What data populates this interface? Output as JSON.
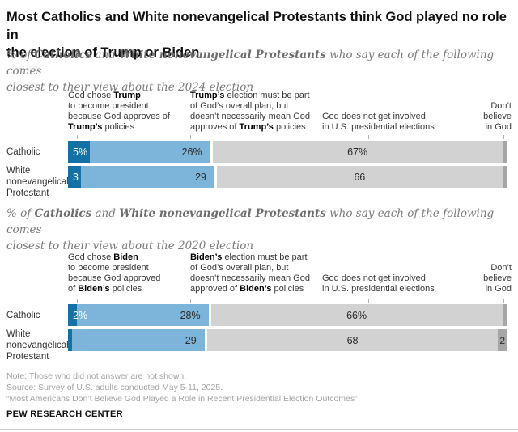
{
  "title": "Most Catholics and White nonevangelical Protestants think God played no role in\nthe election of Trump or Biden",
  "colors": {
    "dark_blue": "#1371a5",
    "light_blue": "#7cb5d9",
    "gray": "#d2d2d2",
    "dark_gray": "#a6a6a6"
  },
  "chart_data": [
    {
      "type": "bar",
      "stacked": true,
      "orientation": "horizontal",
      "xlim": [
        0,
        100
      ],
      "title_plain": "% of Catholics and White nonevangelical Protestants who say each of the following comes closest to their view about the 2024 election",
      "subtitle_lines": [
        [
          {
            "t": "% of ",
            "b": false
          },
          {
            "t": "Catholics",
            "b": true
          },
          {
            "t": " and ",
            "b": false
          },
          {
            "t": "White nonevangelical Protestants",
            "b": true
          },
          {
            "t": " who say each of the following comes",
            "b": false
          }
        ],
        [
          {
            "t": "closest to their view about the 2024 election",
            "b": false
          }
        ]
      ],
      "columns": [
        {
          "plain": "God chose Trump to become president because God approves of Trump’s policies",
          "lines": [
            [
              {
                "t": "God chose ",
                "b": false
              },
              {
                "t": "Trump",
                "b": true
              }
            ],
            [
              {
                "t": "to become president",
                "b": false
              }
            ],
            [
              {
                "t": "because God approves of",
                "b": false
              }
            ],
            [
              {
                "t": "Trump’s",
                "b": true
              },
              {
                "t": " policies",
                "b": false
              }
            ]
          ]
        },
        {
          "plain": "Trump’s election must be part of God’s overall plan, but doesn’t necessarily mean God approves of Trump’s policies",
          "lines": [
            [
              {
                "t": "Trump’s",
                "b": true
              },
              {
                "t": " election must be part",
                "b": false
              }
            ],
            [
              {
                "t": "of God’s overall plan, but",
                "b": false
              }
            ],
            [
              {
                "t": "doesn’t necessarily mean God",
                "b": false
              }
            ],
            [
              {
                "t": "approves of ",
                "b": false
              },
              {
                "t": "Trump’s",
                "b": true
              },
              {
                "t": " policies",
                "b": false
              }
            ]
          ]
        },
        {
          "plain": "God does not get involved in U.S. presidential elections",
          "lines": [
            [
              {
                "t": "God does not get involved",
                "b": false
              }
            ],
            [
              {
                "t": "in U.S. presidential elections",
                "b": false
              }
            ]
          ]
        },
        {
          "plain": "Don’t believe in God",
          "lines": [
            [
              {
                "t": "Don’t",
                "b": false
              }
            ],
            [
              {
                "t": "believe",
                "b": false
              }
            ],
            [
              {
                "t": "in God",
                "b": false
              }
            ]
          ]
        }
      ],
      "categories": [
        "Catholic",
        "White nonevangelical Protestant"
      ],
      "rows": [
        {
          "label": "Catholic",
          "segments": [
            {
              "value": 5,
              "label": "5%"
            },
            {
              "value": 26,
              "label": "26%"
            },
            {
              "value": 67,
              "label": "67%"
            },
            {
              "value": 1,
              "label": ""
            }
          ]
        },
        {
          "label": "White\nnonevangelical\nProtestant",
          "segments": [
            {
              "value": 3,
              "label": "3"
            },
            {
              "value": 29,
              "label": "29"
            },
            {
              "value": 66,
              "label": "66"
            },
            {
              "value": 1,
              "label": ""
            }
          ]
        }
      ]
    },
    {
      "type": "bar",
      "stacked": true,
      "orientation": "horizontal",
      "xlim": [
        0,
        100
      ],
      "title_plain": "% of Catholics and White nonevangelical Protestants who say each of the following comes closest to their view about the 2020 election",
      "subtitle_lines": [
        [
          {
            "t": "% of ",
            "b": false
          },
          {
            "t": "Catholics",
            "b": true
          },
          {
            "t": " and ",
            "b": false
          },
          {
            "t": "White nonevangelical Protestants",
            "b": true
          },
          {
            "t": " who say each of the following comes",
            "b": false
          }
        ],
        [
          {
            "t": "closest to their view about the 2020 election",
            "b": false
          }
        ]
      ],
      "columns": [
        {
          "plain": "God chose Biden to become president because God approved of Biden’s policies",
          "lines": [
            [
              {
                "t": "God chose ",
                "b": false
              },
              {
                "t": "Biden",
                "b": true
              }
            ],
            [
              {
                "t": "to become president",
                "b": false
              }
            ],
            [
              {
                "t": "because God approved",
                "b": false
              }
            ],
            [
              {
                "t": "of ",
                "b": false
              },
              {
                "t": "Biden’s",
                "b": true
              },
              {
                "t": " policies",
                "b": false
              }
            ]
          ]
        },
        {
          "plain": "Biden’s election must be part of God’s overall plan, but doesn’t necessarily mean God approved of Biden’s policies",
          "lines": [
            [
              {
                "t": "Biden’s",
                "b": true
              },
              {
                "t": " election must be part",
                "b": false
              }
            ],
            [
              {
                "t": "of God’s overall plan, but",
                "b": false
              }
            ],
            [
              {
                "t": "doesn’t necessarily mean God",
                "b": false
              }
            ],
            [
              {
                "t": "approved of ",
                "b": false
              },
              {
                "t": "Biden’s",
                "b": true
              },
              {
                "t": " policies",
                "b": false
              }
            ]
          ]
        },
        {
          "plain": "God does not get involved in U.S. presidential elections",
          "lines": [
            [
              {
                "t": "God does not get involved",
                "b": false
              }
            ],
            [
              {
                "t": "in U.S. presidential elections",
                "b": false
              }
            ]
          ]
        },
        {
          "plain": "Don’t believe in God",
          "lines": [
            [
              {
                "t": "Don’t",
                "b": false
              }
            ],
            [
              {
                "t": "believe",
                "b": false
              }
            ],
            [
              {
                "t": "in God",
                "b": false
              }
            ]
          ]
        }
      ],
      "categories": [
        "Catholic",
        "White nonevangelical Protestant"
      ],
      "rows": [
        {
          "label": "Catholic",
          "segments": [
            {
              "value": 2,
              "label": "2%"
            },
            {
              "value": 28,
              "label": "28%"
            },
            {
              "value": 66,
              "label": "66%"
            },
            {
              "value": 1,
              "label": ""
            }
          ]
        },
        {
          "label": "White\nnonevangelical\nProtestant",
          "segments": [
            {
              "value": 1,
              "label": ""
            },
            {
              "value": 29,
              "label": "29"
            },
            {
              "value": 68,
              "label": "68"
            },
            {
              "value": 2,
              "label": "2"
            }
          ]
        }
      ]
    }
  ],
  "footer": {
    "note": "Note: Those who did not answer are not shown.",
    "source": "Source: Survey of U.S. adults conducted May 5-11, 2025.",
    "report": "“Most Americans Don’t Believe God Played a Role in Recent Presidential Election Outcomes”",
    "brand": "PEW RESEARCH CENTER"
  }
}
